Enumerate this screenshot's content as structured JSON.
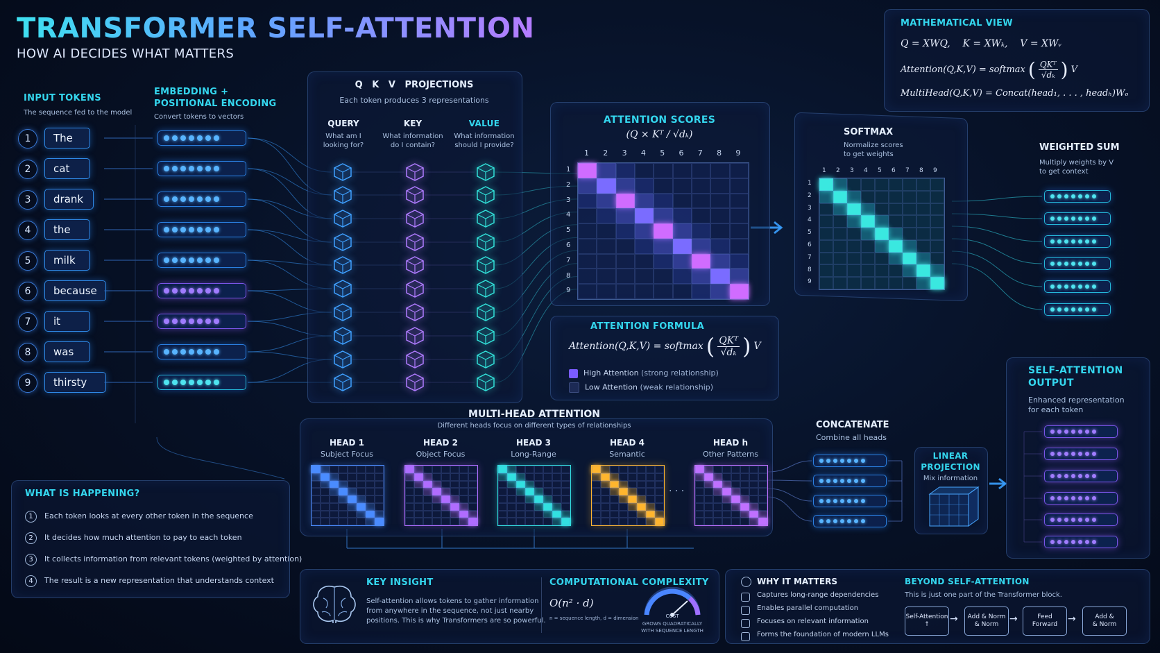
{
  "header": {
    "title": "TRANSFORMER SELF-ATTENTION",
    "subtitle": "HOW AI DECIDES WHAT MATTERS"
  },
  "input_tokens": {
    "title": "INPUT TOKENS",
    "subtitle": "The sequence fed to the model",
    "tokens": [
      {
        "n": "1",
        "text": "The"
      },
      {
        "n": "2",
        "text": "cat"
      },
      {
        "n": "3",
        "text": "drank"
      },
      {
        "n": "4",
        "text": "the"
      },
      {
        "n": "5",
        "text": "milk"
      },
      {
        "n": "6",
        "text": "because"
      },
      {
        "n": "7",
        "text": "it"
      },
      {
        "n": "8",
        "text": "was"
      },
      {
        "n": "9",
        "text": "thirsty"
      }
    ]
  },
  "embedding": {
    "title_line1": "EMBEDDING +",
    "title_line2": "POSITIONAL ENCODING",
    "subtitle": "Convert tokens to vectors"
  },
  "qkv": {
    "title": "Q   K   V   PROJECTIONS",
    "subtitle": "Each token produces 3 representations",
    "query": {
      "label": "QUERY",
      "desc1": "What am I",
      "desc2": "looking for?"
    },
    "key": {
      "label": "KEY",
      "desc1": "What information",
      "desc2": "do I contain?"
    },
    "value": {
      "label": "VALUE",
      "desc1": "What information",
      "desc2": "should I provide?"
    }
  },
  "attention_scores": {
    "title": "ATTENTION SCORES",
    "formula": "(Q × Kᵀ / √dₖ)",
    "axis": [
      "1",
      "2",
      "3",
      "4",
      "5",
      "6",
      "7",
      "8",
      "9"
    ]
  },
  "softmax": {
    "title": "SOFTMAX",
    "desc1": "Normalize scores",
    "desc2": "to get weights"
  },
  "weighted_sum": {
    "title": "WEIGHTED SUM",
    "desc1": "Multiply weights by V",
    "desc2": "to get context"
  },
  "math_view": {
    "title": "MATHEMATICAL VIEW",
    "line1": "Q = XWQ,    K = XWₖ,    V = XWᵥ",
    "attention_lhs": "Attention(Q,K,V) = softmax",
    "frac_num": "QKᵀ",
    "frac_den": "√dₖ",
    "attention_rhs": "V",
    "line3": "MultiHead(Q,K,V) = Concat(head₁, . . . , headₕ)Wₒ"
  },
  "attention_formula": {
    "title": "ATTENTION FORMULA",
    "lhs": "Attention(Q,K,V) = softmax",
    "frac_num": "QKᵀ",
    "frac_den": "√dₖ",
    "rhs": "V",
    "legend_high": "High Attention",
    "legend_high_note": "(strong relationship)",
    "legend_low": "Low Attention",
    "legend_low_note": "(weak relationship)",
    "colors": {
      "high": "#7a5cff",
      "low": "#1c2a55"
    }
  },
  "multihead": {
    "title": "MULTI-HEAD ATTENTION",
    "subtitle": "Different heads focus on different types of relationships",
    "ellipsis": ". . .",
    "heads": [
      {
        "name": "HEAD 1",
        "focus": "Subject Focus",
        "color": "#4a8cff"
      },
      {
        "name": "HEAD 2",
        "focus": "Object Focus",
        "color": "#b06cff"
      },
      {
        "name": "HEAD 3",
        "focus": "Long-Range",
        "color": "#32e0e0"
      },
      {
        "name": "HEAD 4",
        "focus": "Semantic",
        "color": "#ffb52e"
      },
      {
        "name": "HEAD h",
        "focus": "Other Patterns",
        "color": "#c070ff"
      }
    ]
  },
  "concatenate": {
    "title": "CONCATENATE",
    "subtitle": "Combine all heads"
  },
  "linear": {
    "title_line1": "LINEAR",
    "title_line2": "PROJECTION",
    "subtitle": "Mix information"
  },
  "output": {
    "title_line1": "SELF-ATTENTION",
    "title_line2": "OUTPUT",
    "desc1": "Enhanced representation",
    "desc2": "for each token"
  },
  "what_happening": {
    "title": "WHAT IS HAPPENING?",
    "items": [
      "Each token looks at every other token in the sequence",
      "It decides how much attention to pay to each token",
      "It collects information from relevant tokens (weighted by attention)",
      "The result is a new representation that understands context"
    ]
  },
  "key_insight": {
    "title": "KEY INSIGHT",
    "line1": "Self-attention allows tokens to gather information",
    "line2": "from anywhere in the sequence, not just nearby",
    "line3": "positions. This is why Transformers are so powerful."
  },
  "complexity": {
    "title": "COMPUTATIONAL COMPLEXITY",
    "formula": "O(n² · d)",
    "note": "n = sequence length, d = dimension",
    "gauge_label": "COST",
    "gauge_note1": "GROWS QUADRATICALLY",
    "gauge_note2": "WITH SEQUENCE LENGTH"
  },
  "why_matters": {
    "title": "WHY IT MATTERS",
    "items": [
      "Captures long-range dependencies",
      "Enables parallel computation",
      "Focuses on relevant information",
      "Forms the foundation of modern LLMs"
    ]
  },
  "beyond": {
    "title": "BEYOND SELF-ATTENTION",
    "subtitle": "This is just one part of the Transformer block.",
    "blocks": [
      {
        "line1": "Self-Attention",
        "line2": "↑"
      },
      {
        "line1": "Add & Norm",
        "line2": "& Norm"
      },
      {
        "line1": "Feed",
        "line2": "Forward"
      },
      {
        "line1": "Add &",
        "line2": "& Norm"
      }
    ]
  }
}
